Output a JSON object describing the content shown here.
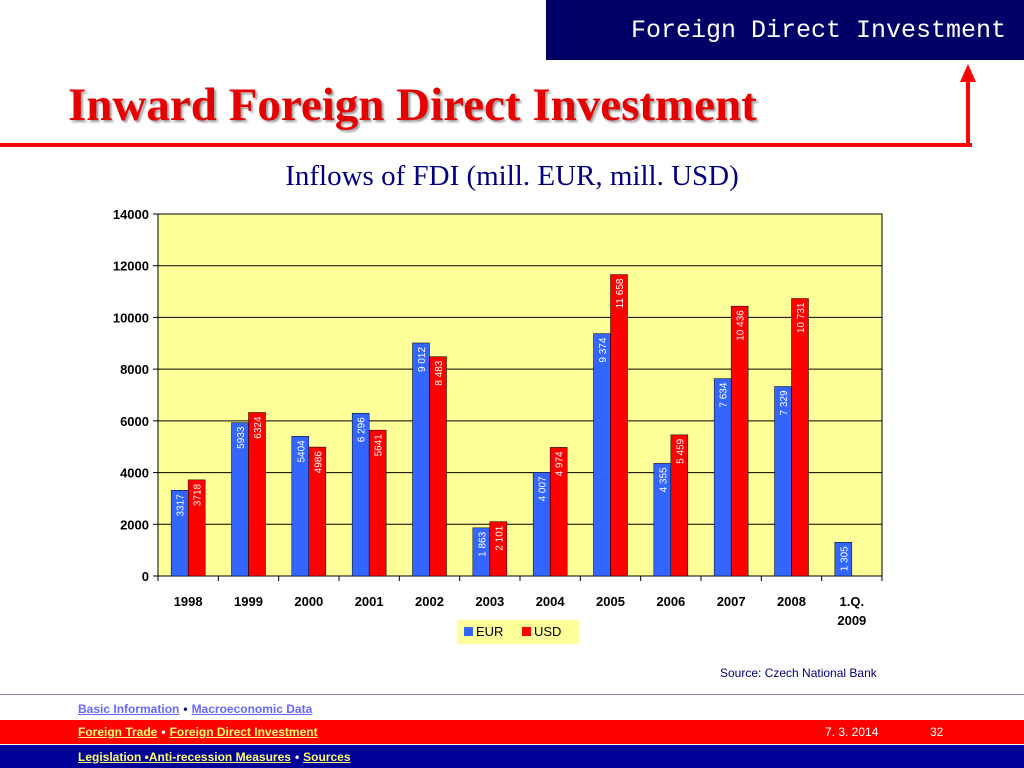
{
  "header": {
    "banner": "Foreign Direct Investment",
    "title": "Inward Foreign Direct Investment",
    "subtitle": "Inflows of FDI (mill. EUR, mill. USD)"
  },
  "chart_data": {
    "type": "bar",
    "categories": [
      "1998",
      "1999",
      "2000",
      "2001",
      "2002",
      "2003",
      "2004",
      "2005",
      "2006",
      "2007",
      "2008",
      "1.Q. 2009"
    ],
    "series": [
      {
        "name": "EUR",
        "color": "#3366ff",
        "values": [
          3317,
          5933,
          5404,
          6296,
          9012,
          1863,
          4007,
          9374,
          4355,
          7634,
          7329,
          1305
        ],
        "labels": [
          "3317",
          "5933",
          "5404",
          "6 296",
          "9 012",
          "1 863",
          "4 007",
          "9 374",
          "4 355",
          "7 634",
          "7 329",
          "1 305"
        ]
      },
      {
        "name": "USD",
        "color": "#ff0000",
        "values": [
          3718,
          6324,
          4986,
          5641,
          8483,
          2101,
          4974,
          11658,
          5459,
          10436,
          10731,
          null
        ],
        "labels": [
          "3718",
          "6324",
          "4986",
          "5641",
          "8 483",
          "2 101",
          "4 974",
          "11 658",
          "5 459",
          "10 436",
          "10 731",
          ""
        ]
      }
    ],
    "ylim": [
      0,
      14000
    ],
    "yticks": [
      "0",
      "2000",
      "4000",
      "6000",
      "8000",
      "10000",
      "12000",
      "14000"
    ],
    "plot_background": "#ffff99",
    "grid": true,
    "legend": "bottom-center"
  },
  "source": "Source: Czech National Bank",
  "footer": {
    "row1": [
      {
        "label": "Basic Information"
      },
      {
        "label": "Macroeconomic Data "
      }
    ],
    "row2": [
      {
        "label": "Foreign Trade "
      },
      {
        "label": "Foreign Direct Investment"
      }
    ],
    "row3": [
      {
        "label": "Legislation • "
      },
      {
        "label": "Anti-recession Measures "
      },
      {
        "label": "Sources"
      }
    ],
    "separator": "•",
    "date": "7. 3. 2014",
    "page": "32"
  }
}
